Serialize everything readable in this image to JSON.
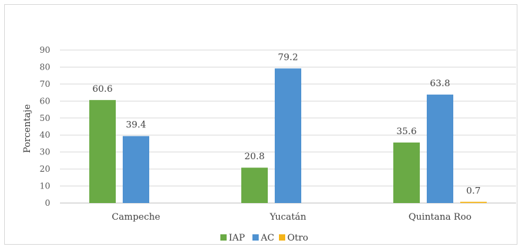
{
  "chart_data": {
    "type": "bar",
    "categories": [
      "Campeche",
      "Yucatán",
      "Quintana Roo"
    ],
    "series": [
      {
        "name": "IAP",
        "color": "#6aaa45",
        "values": [
          60.6,
          20.8,
          35.6
        ]
      },
      {
        "name": "AC",
        "color": "#4f92d1",
        "values": [
          39.4,
          79.2,
          63.8
        ]
      },
      {
        "name": "Otro",
        "color": "#f4b41a",
        "values": [
          null,
          null,
          0.7
        ]
      }
    ],
    "data_labels": [
      [
        "60.6",
        "20.8",
        "35.6"
      ],
      [
        "39.4",
        "79.2",
        "63.8"
      ],
      [
        "",
        "",
        "0.7"
      ]
    ],
    "ylabel": "Porcentaje",
    "ylim": [
      0,
      90
    ],
    "yticks": [
      "0",
      "10",
      "20",
      "30",
      "40",
      "50",
      "60",
      "70",
      "80",
      "90"
    ],
    "grid": true,
    "legend_position": "bottom"
  }
}
